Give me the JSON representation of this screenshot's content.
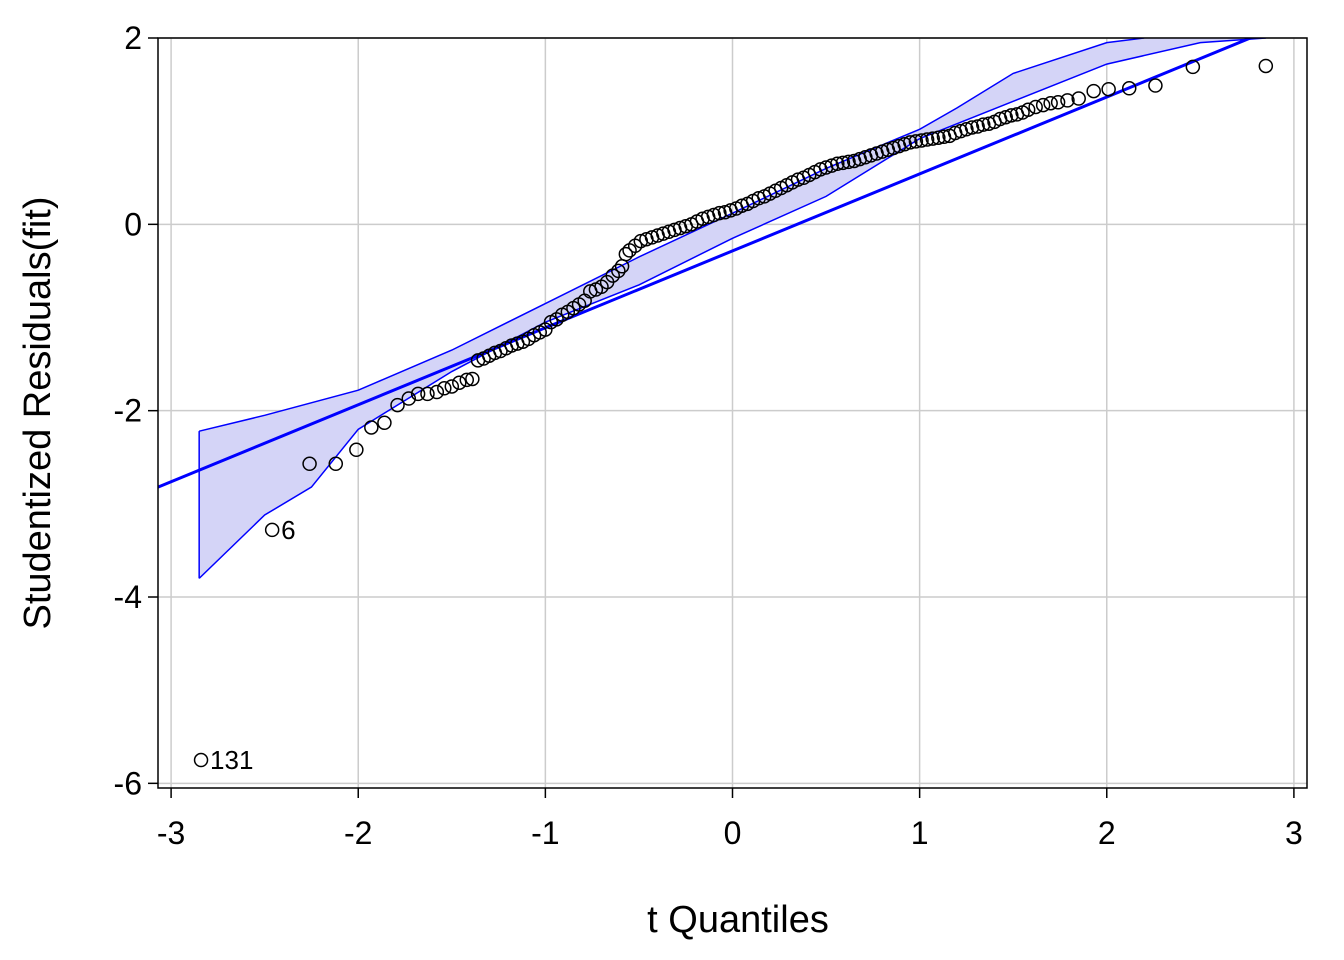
{
  "chart_data": {
    "type": "scatter",
    "xlabel": "t Quantiles",
    "ylabel": "Studentized Residuals(fit)",
    "xlim": [
      -3.07,
      3.07
    ],
    "ylim": [
      -6.05,
      2.0
    ],
    "xticks": [
      -3,
      -2,
      -1,
      0,
      1,
      2,
      3
    ],
    "xtick_labels": [
      "-3",
      "-2",
      "-1",
      "0",
      "1",
      "2",
      "3"
    ],
    "yticks": [
      -6,
      -4,
      -2,
      0,
      2
    ],
    "ytick_labels": [
      "-6",
      "-4",
      "-2",
      "0",
      "2"
    ],
    "grid": true,
    "colors": {
      "line": "#0000ff",
      "band_fill": "#d4d4f7",
      "points": "#000000",
      "grid": "#cccccc"
    },
    "reference_line": {
      "x": [
        -3.07,
        3.07
      ],
      "y": [
        -2.82,
        2.25
      ]
    },
    "band_upper": [
      [
        -2.85,
        -2.22
      ],
      [
        -2.5,
        -2.05
      ],
      [
        -2.0,
        -1.78
      ],
      [
        -1.5,
        -1.35
      ],
      [
        -1.0,
        -0.85
      ],
      [
        -0.5,
        -0.35
      ],
      [
        0.0,
        0.12
      ],
      [
        0.5,
        0.6
      ],
      [
        1.0,
        1.02
      ],
      [
        1.2,
        1.25
      ],
      [
        1.5,
        1.62
      ],
      [
        2.0,
        1.95
      ],
      [
        2.2,
        2.0
      ]
    ],
    "band_lower": [
      [
        -2.85,
        -3.8
      ],
      [
        -2.5,
        -3.12
      ],
      [
        -2.25,
        -2.82
      ],
      [
        -2.0,
        -2.2
      ],
      [
        -1.5,
        -1.58
      ],
      [
        -1.0,
        -1.05
      ],
      [
        -0.5,
        -0.65
      ],
      [
        0.0,
        -0.15
      ],
      [
        0.5,
        0.3
      ],
      [
        1.0,
        0.92
      ],
      [
        1.5,
        1.32
      ],
      [
        2.0,
        1.72
      ],
      [
        2.5,
        1.95
      ],
      [
        2.85,
        2.0
      ]
    ],
    "points": [
      [
        -2.84,
        -5.75
      ],
      [
        -2.46,
        -3.28
      ],
      [
        -2.26,
        -2.57
      ],
      [
        -2.12,
        -2.57
      ],
      [
        -2.01,
        -2.42
      ],
      [
        -1.93,
        -2.18
      ],
      [
        -1.86,
        -2.13
      ],
      [
        -1.79,
        -1.94
      ],
      [
        -1.73,
        -1.87
      ],
      [
        -1.68,
        -1.82
      ],
      [
        -1.63,
        -1.82
      ],
      [
        -1.58,
        -1.8
      ],
      [
        -1.54,
        -1.76
      ],
      [
        -1.5,
        -1.74
      ],
      [
        -1.46,
        -1.7
      ],
      [
        -1.42,
        -1.67
      ],
      [
        -1.39,
        -1.66
      ],
      [
        -1.36,
        -1.46
      ],
      [
        -1.33,
        -1.44
      ],
      [
        -1.3,
        -1.41
      ],
      [
        -1.27,
        -1.38
      ],
      [
        -1.24,
        -1.36
      ],
      [
        -1.21,
        -1.33
      ],
      [
        -1.18,
        -1.3
      ],
      [
        -1.15,
        -1.28
      ],
      [
        -1.12,
        -1.26
      ],
      [
        -1.09,
        -1.23
      ],
      [
        -1.06,
        -1.19
      ],
      [
        -1.03,
        -1.16
      ],
      [
        -1.0,
        -1.13
      ],
      [
        -0.97,
        -1.05
      ],
      [
        -0.94,
        -1.02
      ],
      [
        -0.91,
        -0.97
      ],
      [
        -0.88,
        -0.94
      ],
      [
        -0.85,
        -0.9
      ],
      [
        -0.82,
        -0.86
      ],
      [
        -0.79,
        -0.82
      ],
      [
        -0.76,
        -0.72
      ],
      [
        -0.73,
        -0.7
      ],
      [
        -0.7,
        -0.67
      ],
      [
        -0.67,
        -0.62
      ],
      [
        -0.64,
        -0.55
      ],
      [
        -0.61,
        -0.5
      ],
      [
        -0.59,
        -0.45
      ],
      [
        -0.57,
        -0.32
      ],
      [
        -0.55,
        -0.28
      ],
      [
        -0.52,
        -0.23
      ],
      [
        -0.49,
        -0.18
      ],
      [
        -0.46,
        -0.16
      ],
      [
        -0.43,
        -0.14
      ],
      [
        -0.4,
        -0.12
      ],
      [
        -0.37,
        -0.1
      ],
      [
        -0.34,
        -0.08
      ],
      [
        -0.31,
        -0.06
      ],
      [
        -0.28,
        -0.04
      ],
      [
        -0.25,
        -0.02
      ],
      [
        -0.22,
        0.0
      ],
      [
        -0.19,
        0.03
      ],
      [
        -0.16,
        0.06
      ],
      [
        -0.13,
        0.08
      ],
      [
        -0.1,
        0.1
      ],
      [
        -0.07,
        0.12
      ],
      [
        -0.04,
        0.13
      ],
      [
        -0.01,
        0.15
      ],
      [
        0.02,
        0.17
      ],
      [
        0.05,
        0.2
      ],
      [
        0.08,
        0.22
      ],
      [
        0.11,
        0.25
      ],
      [
        0.14,
        0.28
      ],
      [
        0.17,
        0.3
      ],
      [
        0.2,
        0.33
      ],
      [
        0.23,
        0.36
      ],
      [
        0.26,
        0.39
      ],
      [
        0.29,
        0.42
      ],
      [
        0.32,
        0.45
      ],
      [
        0.35,
        0.48
      ],
      [
        0.38,
        0.5
      ],
      [
        0.41,
        0.53
      ],
      [
        0.44,
        0.56
      ],
      [
        0.47,
        0.59
      ],
      [
        0.5,
        0.61
      ],
      [
        0.53,
        0.63
      ],
      [
        0.56,
        0.65
      ],
      [
        0.59,
        0.66
      ],
      [
        0.62,
        0.67
      ],
      [
        0.65,
        0.68
      ],
      [
        0.68,
        0.7
      ],
      [
        0.71,
        0.72
      ],
      [
        0.74,
        0.74
      ],
      [
        0.77,
        0.76
      ],
      [
        0.8,
        0.78
      ],
      [
        0.83,
        0.8
      ],
      [
        0.86,
        0.82
      ],
      [
        0.89,
        0.84
      ],
      [
        0.92,
        0.86
      ],
      [
        0.95,
        0.88
      ],
      [
        0.98,
        0.89
      ],
      [
        1.01,
        0.9
      ],
      [
        1.04,
        0.91
      ],
      [
        1.07,
        0.92
      ],
      [
        1.1,
        0.93
      ],
      [
        1.13,
        0.94
      ],
      [
        1.16,
        0.95
      ],
      [
        1.19,
        0.98
      ],
      [
        1.22,
        1.0
      ],
      [
        1.25,
        1.02
      ],
      [
        1.28,
        1.04
      ],
      [
        1.31,
        1.05
      ],
      [
        1.34,
        1.07
      ],
      [
        1.37,
        1.08
      ],
      [
        1.4,
        1.1
      ],
      [
        1.43,
        1.13
      ],
      [
        1.46,
        1.15
      ],
      [
        1.49,
        1.17
      ],
      [
        1.52,
        1.18
      ],
      [
        1.55,
        1.2
      ],
      [
        1.58,
        1.23
      ],
      [
        1.62,
        1.26
      ],
      [
        1.66,
        1.28
      ],
      [
        1.7,
        1.3
      ],
      [
        1.74,
        1.31
      ],
      [
        1.79,
        1.33
      ],
      [
        1.85,
        1.35
      ],
      [
        1.93,
        1.43
      ],
      [
        2.01,
        1.45
      ],
      [
        2.12,
        1.46
      ],
      [
        2.26,
        1.49
      ],
      [
        2.46,
        1.69
      ],
      [
        2.85,
        1.7
      ]
    ],
    "annotations": [
      {
        "text": "131",
        "x": -2.84,
        "y": -5.75
      },
      {
        "text": "6",
        "x": -2.46,
        "y": -3.28
      }
    ]
  }
}
